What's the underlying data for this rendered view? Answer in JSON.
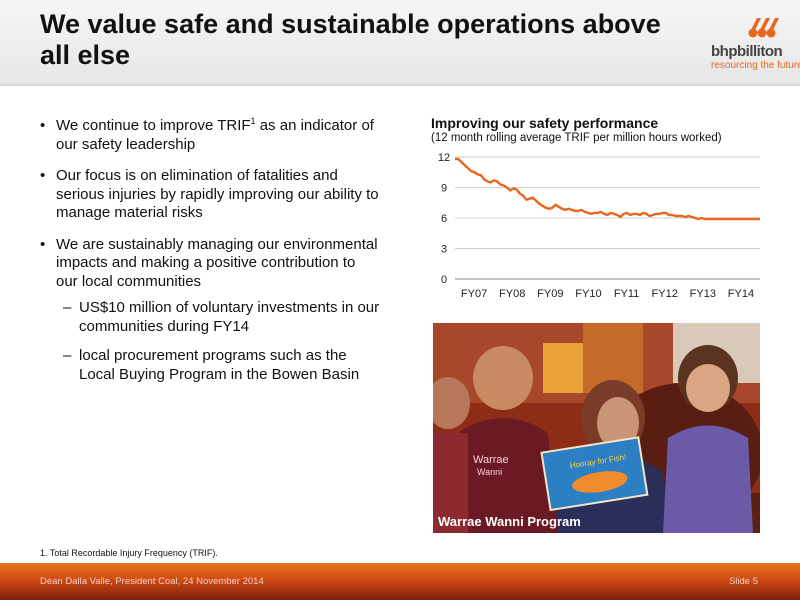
{
  "slide": {
    "title": "We value safe and sustainable operations above all else",
    "logo": {
      "wordmark": "bhpbilliton",
      "tagline": "resourcing the future",
      "brand_color": "#e8671e"
    },
    "bullets": [
      {
        "text": "We continue to improve TRIF",
        "sup": "1",
        "text_after": " as an indicator of our safety leadership"
      },
      {
        "text": "Our focus is on elimination of fatalities and serious injuries by rapidly improving our ability to manage material risks"
      },
      {
        "text": "We are sustainably managing our environmental impacts and making a positive contribution to our local communities"
      }
    ],
    "sub_bullets": [
      {
        "text": "US$10 million of voluntary investments in our communities during FY14"
      },
      {
        "text": "local procurement programs such as the Local Buying Program in the Bowen Basin"
      }
    ],
    "photo": {
      "caption": "Warrae Wanni Program",
      "book_text": "Hooray for Fish!"
    },
    "footnote": "1.  Total Recordable Injury Frequency (TRIF).",
    "footer": {
      "text": "Dean Dalla Valle, President Coal, 24 November 2014",
      "slide_number": "Slide 5"
    }
  },
  "chart_data": {
    "type": "line",
    "title": "Improving our safety performance",
    "subtitle": "(12 month rolling average TRIF per million hours worked)",
    "xlabel": "",
    "ylabel": "",
    "ylim": [
      0,
      12
    ],
    "y_ticks": [
      0,
      3,
      6,
      9,
      12
    ],
    "x_ticks": [
      "FY07",
      "FY08",
      "FY09",
      "FY10",
      "FY11",
      "FY12",
      "FY13",
      "FY14"
    ],
    "grid": "horizontal",
    "line_color": "#e8671e",
    "series": [
      {
        "values": [
          11.8,
          11.8,
          11.5,
          11.2,
          10.9,
          10.6,
          10.5,
          10.3,
          10.2,
          9.8,
          9.6,
          9.5,
          9.7,
          9.6,
          9.3,
          9.2,
          9.0,
          8.7,
          8.9,
          8.8,
          8.4,
          8.2,
          7.8,
          7.9,
          8.0,
          7.7,
          7.4,
          7.2,
          7.0,
          6.9,
          7.0,
          7.3,
          7.1,
          6.9,
          6.8,
          6.9,
          6.8,
          6.7,
          6.7,
          6.8,
          6.6,
          6.5,
          6.4,
          6.5,
          6.5,
          6.6,
          6.4,
          6.3,
          6.5,
          6.4,
          6.3,
          6.1,
          6.4,
          6.5,
          6.3,
          6.4,
          6.4,
          6.3,
          6.5,
          6.4,
          6.2,
          6.3,
          6.4,
          6.4,
          6.5,
          6.5,
          6.3,
          6.3,
          6.2,
          6.2,
          6.2,
          6.1,
          6.2,
          6.1,
          6.0,
          5.9,
          6.0,
          5.9,
          5.9,
          5.9,
          5.9,
          5.9,
          5.9,
          5.9,
          5.9,
          5.9,
          5.9,
          5.9,
          5.9,
          5.9,
          5.9,
          5.9,
          5.9,
          5.9,
          5.9
        ]
      }
    ]
  }
}
